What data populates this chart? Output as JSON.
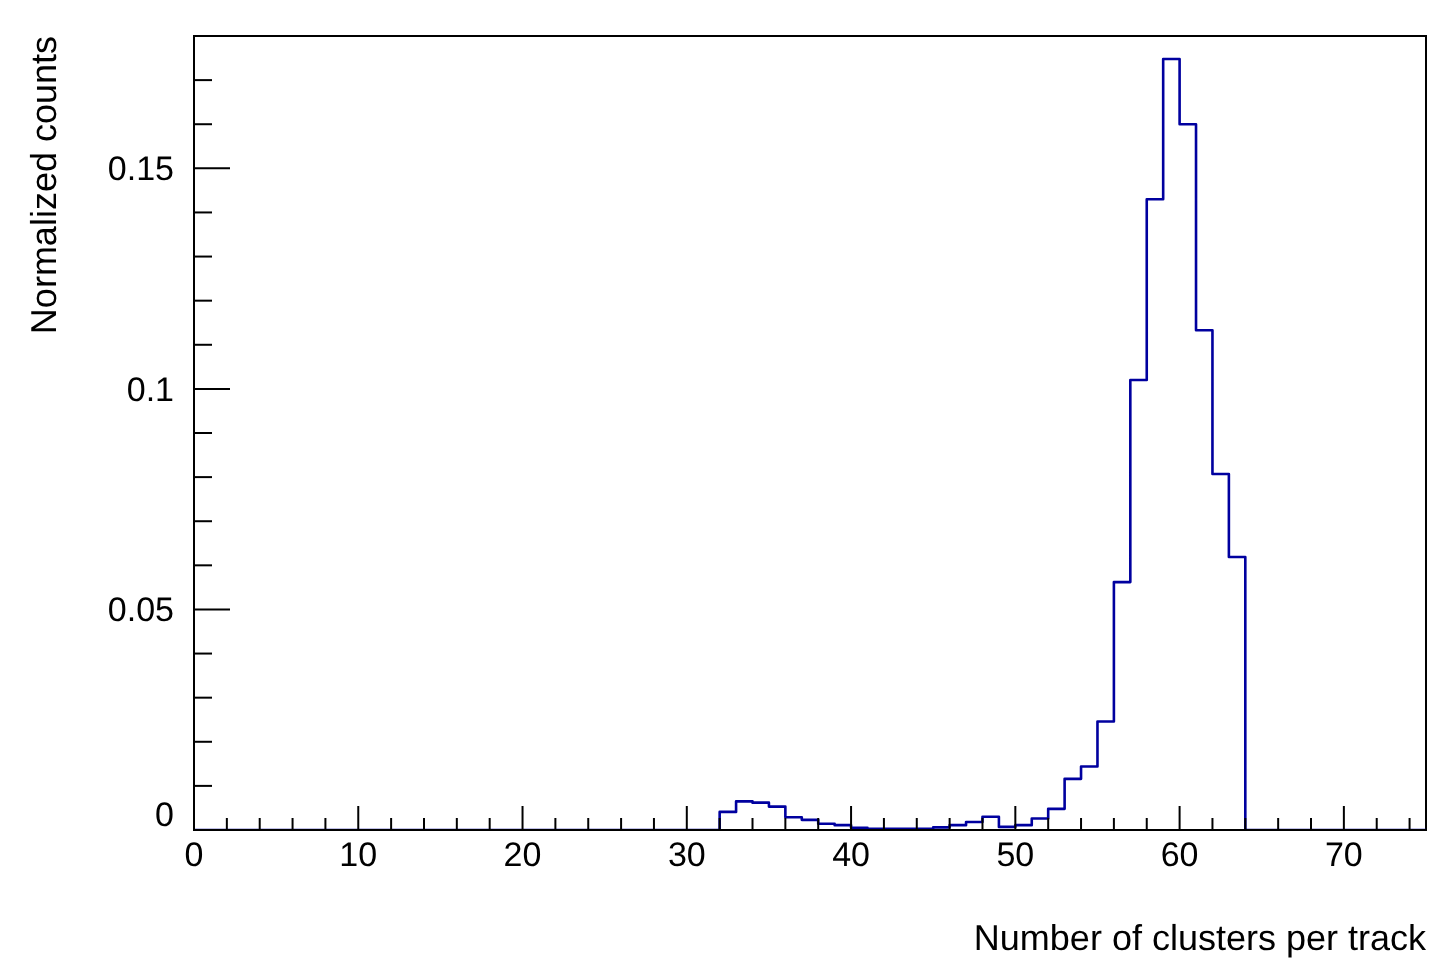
{
  "chart_data": {
    "type": "histogram",
    "xlabel": "Number of clusters per track",
    "ylabel": "Normalized counts",
    "bins": [
      0,
      1,
      2,
      3,
      4,
      5,
      6,
      7,
      8,
      9,
      10,
      11,
      12,
      13,
      14,
      15,
      16,
      17,
      18,
      19,
      20,
      21,
      22,
      23,
      24,
      25,
      26,
      27,
      28,
      29,
      30,
      31,
      32,
      33,
      34,
      35,
      36,
      37,
      38,
      39,
      40,
      41,
      42,
      43,
      44,
      45,
      46,
      47,
      48,
      49,
      50,
      51,
      52,
      53,
      54,
      55,
      56,
      57,
      58,
      59,
      60,
      61,
      62,
      63,
      64,
      65,
      66,
      67,
      68,
      69,
      70,
      71,
      72,
      73,
      74,
      75
    ],
    "values": [
      0,
      0,
      0,
      0,
      0,
      0,
      0,
      0,
      0,
      0,
      0,
      0,
      0,
      0,
      0,
      0,
      0,
      0,
      0,
      0,
      0,
      0,
      0,
      0,
      0,
      0,
      0,
      0,
      0,
      0,
      0,
      0,
      0.0041,
      0.0065,
      0.0062,
      0.0053,
      0.0029,
      0.0023,
      0.0014,
      0.0011,
      0.0005,
      0.0003,
      0.0003,
      0.0003,
      0.0003,
      0.0006,
      0.0011,
      0.0018,
      0.003,
      0.0007,
      0.0011,
      0.0026,
      0.0048,
      0.0116,
      0.0144,
      0.0246,
      0.0562,
      0.102,
      0.143,
      0.1748,
      0.16,
      0.1133,
      0.0807,
      0.0619,
      0,
      0,
      0,
      0,
      0,
      0,
      0,
      0,
      0,
      0,
      0
    ],
    "color": "#00009f",
    "xlim": [
      0,
      75
    ],
    "xticks": [
      0,
      {
        "value": 2,
        "label": null
      },
      {
        "value": 4,
        "label": null
      },
      {
        "value": 6,
        "label": null
      },
      {
        "value": 8,
        "label": null
      },
      10,
      {
        "value": 12,
        "label": null
      },
      {
        "value": 14,
        "label": null
      },
      {
        "value": 16,
        "label": null
      },
      {
        "value": 18,
        "label": null
      },
      20,
      {
        "value": 22,
        "label": null
      },
      {
        "value": 24,
        "label": null
      },
      {
        "value": 26,
        "label": null
      },
      {
        "value": 28,
        "label": null
      },
      30,
      {
        "value": 32,
        "label": null
      },
      {
        "value": 34,
        "label": null
      },
      {
        "value": 36,
        "label": null
      },
      {
        "value": 38,
        "label": null
      },
      40,
      {
        "value": 42,
        "label": null
      },
      {
        "value": 44,
        "label": null
      },
      {
        "value": 46,
        "label": null
      },
      {
        "value": 48,
        "label": null
      },
      50,
      {
        "value": 52,
        "label": null
      },
      {
        "value": 54,
        "label": null
      },
      {
        "value": 56,
        "label": null
      },
      {
        "value": 58,
        "label": null
      },
      60,
      {
        "value": 62,
        "label": null
      },
      {
        "value": 64,
        "label": null
      },
      {
        "value": 66,
        "label": null
      },
      {
        "value": 68,
        "label": null
      },
      70,
      {
        "value": 72,
        "label": null
      },
      {
        "value": 74,
        "label": null
      }
    ],
    "ylim": [
      0,
      0.18
    ],
    "yticks": [
      0,
      {
        "value": 0.01,
        "label": null
      },
      {
        "value": 0.02,
        "label": null
      },
      {
        "value": 0.03,
        "label": null
      },
      {
        "value": 0.04,
        "label": null
      },
      0.05,
      {
        "value": 0.06,
        "label": null
      },
      {
        "value": 0.07,
        "label": null
      },
      {
        "value": 0.08,
        "label": null
      },
      {
        "value": 0.09,
        "label": null
      },
      0.1,
      {
        "value": 0.11,
        "label": null
      },
      {
        "value": 0.12,
        "label": null
      },
      {
        "value": 0.13,
        "label": null
      },
      {
        "value": 0.14,
        "label": null
      },
      0.15,
      {
        "value": 0.16,
        "label": null
      },
      {
        "value": 0.17,
        "label": null
      }
    ]
  }
}
